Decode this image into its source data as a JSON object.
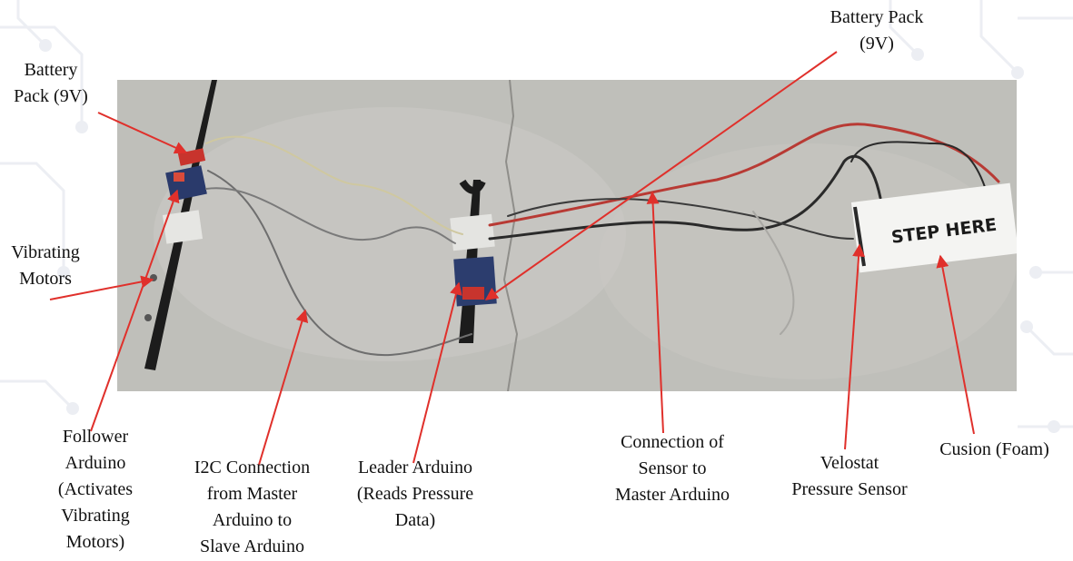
{
  "labels": {
    "battery_left": [
      "Battery",
      "Pack (9V)"
    ],
    "battery_right": [
      "Battery Pack",
      "(9V)"
    ],
    "vibrating_motors": [
      "Vibrating",
      "Motors"
    ],
    "follower_arduino": [
      "Follower",
      "Arduino",
      "(Activates",
      "Vibrating",
      "Motors)"
    ],
    "i2c_connection": [
      "I2C Connection",
      "from Master",
      "Arduino to",
      "Slave Arduino"
    ],
    "leader_arduino": [
      "Leader Arduino",
      "(Reads Pressure",
      "Data)"
    ],
    "sensor_connection": [
      "Connection of",
      "Sensor to",
      "Master Arduino"
    ],
    "velostat": [
      "Velostat",
      "Pressure Sensor"
    ],
    "cushion": [
      "Cusion (Foam)"
    ]
  },
  "mat_text": "STEP HERE",
  "colors": {
    "arrow": "#e0302b",
    "floor": "#c4c3bf",
    "text": "#111111"
  }
}
